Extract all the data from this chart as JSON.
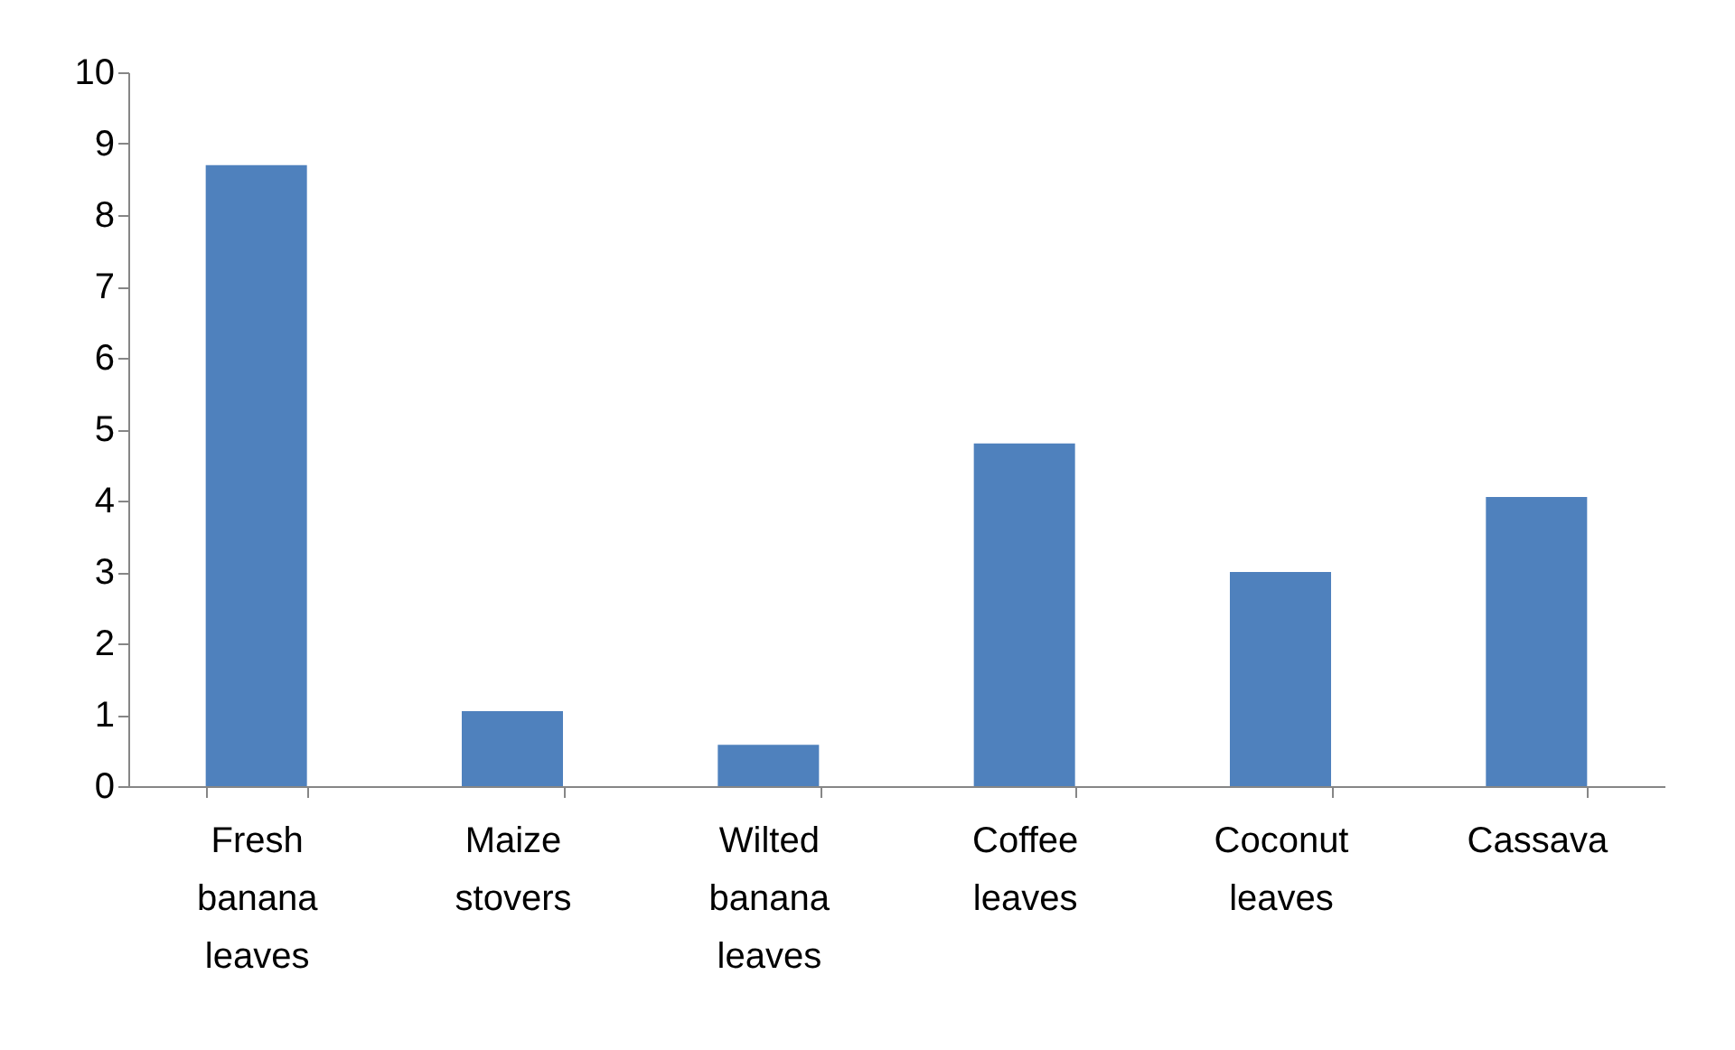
{
  "chart_data": {
    "type": "bar",
    "categories": [
      "Fresh banana leaves",
      "Maize stovers",
      "Wilted banana leaves",
      "Coffee leaves",
      "Coconut leaves",
      "Cassava"
    ],
    "values": [
      8.7,
      1.05,
      0.58,
      4.8,
      3.0,
      4.05
    ],
    "color": "#4f81bd",
    "ylim": [
      0,
      10
    ],
    "yticks": [
      0,
      1,
      2,
      3,
      4,
      5,
      6,
      7,
      8,
      9,
      10
    ],
    "grid": false
  }
}
